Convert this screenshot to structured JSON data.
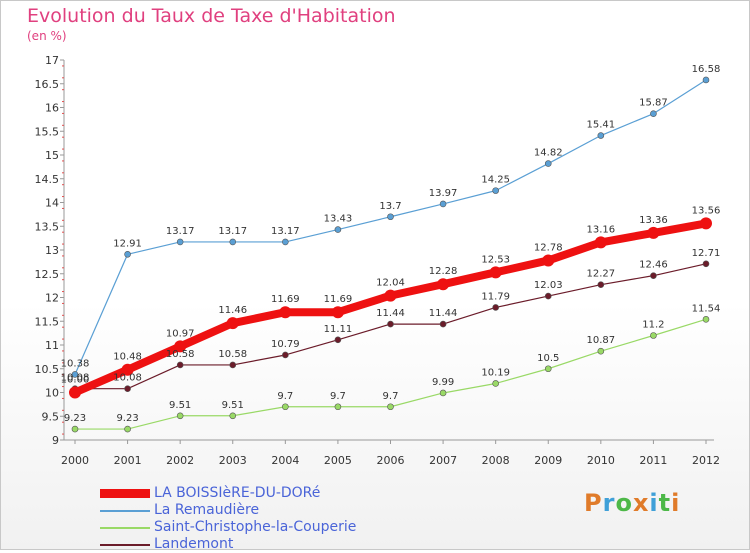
{
  "title": "Evolution du Taux de Taxe d'Habitation",
  "subtitle": "(en %)",
  "brand": {
    "letters": [
      {
        "ch": "P",
        "color": "#e07b2a"
      },
      {
        "ch": "r",
        "color": "#3fa0d8"
      },
      {
        "ch": "o",
        "color": "#4db848"
      },
      {
        "ch": "x",
        "color": "#e07b2a"
      },
      {
        "ch": "i",
        "color": "#3fa0d8"
      },
      {
        "ch": "t",
        "color": "#4db848"
      },
      {
        "ch": "i",
        "color": "#e07b2a"
      }
    ]
  },
  "chart_data": {
    "type": "line",
    "x": [
      "2000",
      "2001",
      "2002",
      "2003",
      "2004",
      "2005",
      "2006",
      "2007",
      "2008",
      "2009",
      "2010",
      "2011",
      "2012"
    ],
    "ylim": [
      9,
      17
    ],
    "yticks": [
      "9",
      "9.5",
      "10",
      "10.5",
      "11",
      "11.5",
      "12",
      "12.5",
      "13",
      "13.5",
      "14",
      "14.5",
      "15",
      "15.5",
      "16",
      "16.5",
      "17"
    ],
    "grid": false,
    "legend_position": "bottom-left",
    "series": [
      {
        "name": "LA BOISSIèRE-DU-DORé",
        "color": "#ee1111",
        "values": [
          10.0,
          10.48,
          10.97,
          11.46,
          11.69,
          11.69,
          12.04,
          12.28,
          12.53,
          12.78,
          13.16,
          13.36,
          13.56
        ],
        "labels": [
          "10.00",
          "10.48",
          "10.97",
          "11.46",
          "11.69",
          "11.69",
          "12.04",
          "12.28",
          "12.53",
          "12.78",
          "13.16",
          "13.36",
          "13.56"
        ]
      },
      {
        "name": "La Remaudière",
        "color": "#5a9fd4",
        "values": [
          10.38,
          12.91,
          13.17,
          13.17,
          13.17,
          13.43,
          13.7,
          13.97,
          14.25,
          14.82,
          15.41,
          15.87,
          16.58
        ],
        "labels": [
          "10.38",
          "12.91",
          "13.17",
          "13.17",
          "13.17",
          "13.43",
          "13.7",
          "13.97",
          "14.25",
          "14.82",
          "15.41",
          "15.87",
          "16.58"
        ]
      },
      {
        "name": "Saint-Christophe-la-Couperie",
        "color": "#99d966",
        "values": [
          9.23,
          9.23,
          9.51,
          9.51,
          9.7,
          9.7,
          9.7,
          9.99,
          10.19,
          10.5,
          10.87,
          11.2,
          11.54
        ],
        "labels": [
          "9.23",
          "9.23",
          "9.51",
          "9.51",
          "9.7",
          "9.7",
          "9.7",
          "9.99",
          "10.19",
          "10.5",
          "10.87",
          "11.2",
          "11.54"
        ]
      },
      {
        "name": "Landemont",
        "color": "#6b1c2a",
        "values": [
          10.08,
          10.08,
          10.58,
          10.58,
          10.79,
          11.11,
          11.44,
          11.44,
          11.79,
          12.03,
          12.27,
          12.46,
          12.71
        ],
        "labels": [
          "10.08",
          "10.08",
          "10.58",
          "10.58",
          "10.79",
          "11.11",
          "11.44",
          "11.44",
          "11.79",
          "12.03",
          "12.27",
          "12.46",
          "12.71"
        ]
      }
    ]
  }
}
